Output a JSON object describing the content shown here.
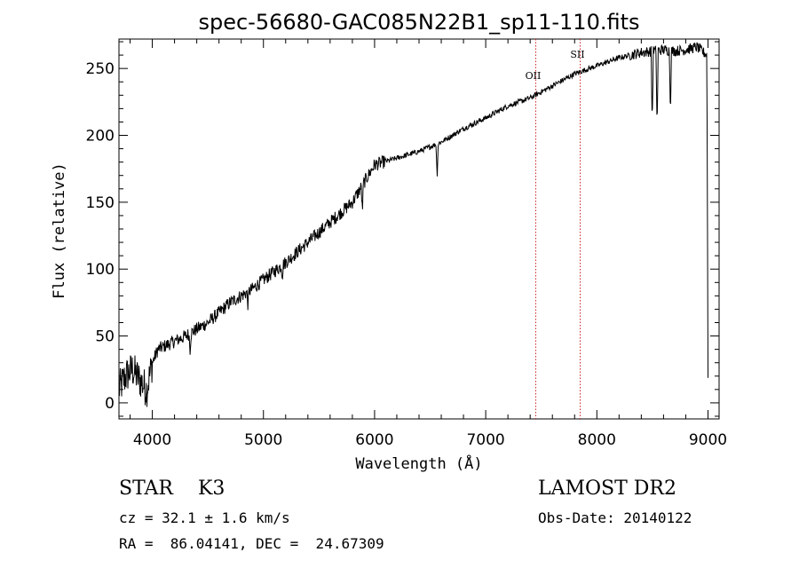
{
  "chart_data": {
    "type": "line",
    "title": "spec-56680-GAC085N22B1_sp11-110.fits",
    "xlabel": "Wavelength (Å)",
    "ylabel": "Flux (relative)",
    "xlim": [
      3700,
      9100
    ],
    "ylim": [
      -12,
      272
    ],
    "xticks": [
      4000,
      5000,
      6000,
      7000,
      8000,
      9000
    ],
    "yticks": [
      0,
      50,
      100,
      150,
      200,
      250
    ],
    "grid": false,
    "series": [
      {
        "name": "spectrum",
        "x": [
          3700,
          3760,
          3820,
          3880,
          3950,
          4000,
          4050,
          4150,
          4300,
          4500,
          4700,
          4900,
          5000,
          5200,
          5400,
          5600,
          5800,
          6000,
          6200,
          6400,
          6600,
          6800,
          7000,
          7200,
          7400,
          7600,
          7800,
          8000,
          8200,
          8400,
          8500,
          8600,
          8700,
          8800,
          8900,
          8990
        ],
        "y": [
          10,
          20,
          25,
          18,
          10,
          30,
          40,
          44,
          50,
          60,
          75,
          85,
          92,
          105,
          120,
          135,
          150,
          178,
          183,
          188,
          195,
          205,
          213,
          222,
          228,
          237,
          246,
          252,
          258,
          262,
          263,
          264,
          263,
          264,
          266,
          260
        ]
      }
    ],
    "absorption_lines": [
      {
        "x": 4340,
        "depth": 12
      },
      {
        "x": 4861,
        "depth": 10
      },
      {
        "x": 5170,
        "depth": 8
      },
      {
        "x": 5890,
        "depth": 20
      },
      {
        "x": 6563,
        "depth": 25
      },
      {
        "x": 8498,
        "depth": 55
      },
      {
        "x": 8542,
        "depth": 60
      },
      {
        "x": 8662,
        "depth": 45
      },
      {
        "x": 9000,
        "depth": 240
      }
    ],
    "line_markers": [
      {
        "label": "OII",
        "x": 7450
      },
      {
        "label": "SII",
        "x": 7850
      }
    ]
  },
  "info": {
    "class_label": "STAR    K3",
    "survey": "LAMOST DR2",
    "cz": "cz = 32.1 ± 1.6 km/s",
    "obs_date": "Obs-Date: 20140122",
    "radec": "RA =  86.04141, DEC =  24.67309"
  }
}
